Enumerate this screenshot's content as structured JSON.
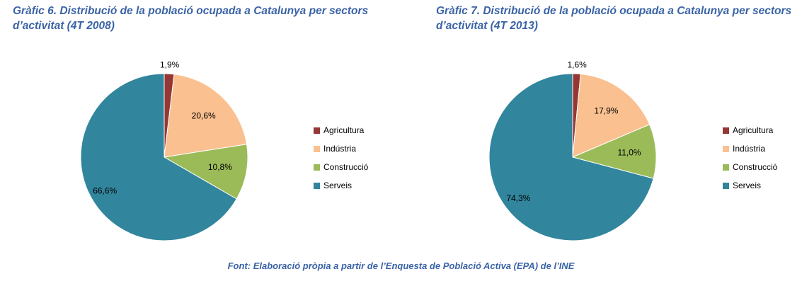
{
  "chart_data": [
    {
      "type": "pie",
      "title": "Gràfic 6. Distribució de la població ocupada a Catalunya per sectors d’activitat (4T 2008)",
      "categories": [
        "Agricultura",
        "Indústria",
        "Construcció",
        "Serveis"
      ],
      "values": [
        1.9,
        20.6,
        10.8,
        66.6
      ],
      "data_labels": [
        "1,9%",
        "20,6%",
        "10,8%",
        "66,6%"
      ],
      "colors": [
        "#953735",
        "#fac090",
        "#9bbb59",
        "#31859c"
      ],
      "legend": "right"
    },
    {
      "type": "pie",
      "title": "Gràfic 7. Distribució de la població ocupada a Catalunya per sectors d’activitat (4T 2013)",
      "categories": [
        "Agricultura",
        "Indústria",
        "Construcció",
        "Serveis"
      ],
      "values": [
        1.6,
        17.9,
        11.0,
        74.3
      ],
      "data_labels": [
        "1,6%",
        "17,9%",
        "11,0%",
        "74,3%"
      ],
      "colors": [
        "#953735",
        "#fac090",
        "#9bbb59",
        "#31859c"
      ],
      "legend": "right"
    }
  ],
  "source": "Font: Elaboració pròpia a partir de l’Enquesta de Població Activa (EPA) de l’INE"
}
